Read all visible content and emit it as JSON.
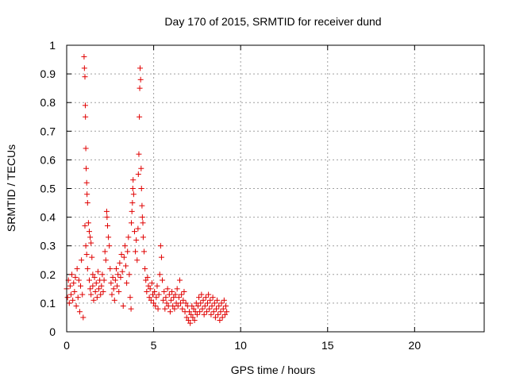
{
  "chart_data": {
    "type": "scatter",
    "title": "Day 170 of 2015, SRMTID for receiver dund",
    "xlabel": "GPS time / hours",
    "ylabel": "SRMTID / TECUs",
    "xlim": [
      0,
      24
    ],
    "ylim": [
      0,
      1
    ],
    "xticks": [
      0,
      5,
      10,
      15,
      20
    ],
    "yticks": [
      0,
      0.1,
      0.2,
      0.3,
      0.4,
      0.5,
      0.6,
      0.7,
      0.8,
      0.9,
      1
    ],
    "ytick_labels": [
      "0",
      "0.1",
      "0.2",
      "0.3",
      "0.4",
      "0.5",
      "0.6",
      "0.7",
      "0.8",
      "0.9",
      "1"
    ],
    "grid": true,
    "marker": "+",
    "color": "#e00000",
    "series": [
      {
        "name": "SRMTID",
        "points": [
          [
            0.0,
            0.15
          ],
          [
            0.05,
            0.12
          ],
          [
            0.1,
            0.18
          ],
          [
            0.15,
            0.1
          ],
          [
            0.2,
            0.16
          ],
          [
            0.25,
            0.13
          ],
          [
            0.3,
            0.2
          ],
          [
            0.35,
            0.11
          ],
          [
            0.4,
            0.17
          ],
          [
            0.45,
            0.14
          ],
          [
            0.5,
            0.19
          ],
          [
            0.55,
            0.09
          ],
          [
            0.6,
            0.22
          ],
          [
            0.65,
            0.12
          ],
          [
            0.7,
            0.18
          ],
          [
            0.75,
            0.07
          ],
          [
            0.8,
            0.16
          ],
          [
            0.85,
            0.25
          ],
          [
            0.9,
            0.13
          ],
          [
            0.95,
            0.05
          ],
          [
            1.0,
            0.96
          ],
          [
            1.02,
            0.92
          ],
          [
            1.05,
            0.89
          ],
          [
            1.07,
            0.79
          ],
          [
            1.08,
            0.75
          ],
          [
            1.1,
            0.64
          ],
          [
            1.12,
            0.57
          ],
          [
            1.15,
            0.52
          ],
          [
            1.17,
            0.48
          ],
          [
            1.2,
            0.45
          ],
          [
            1.05,
            0.37
          ],
          [
            1.1,
            0.3
          ],
          [
            1.15,
            0.27
          ],
          [
            1.2,
            0.22
          ],
          [
            1.25,
            0.38
          ],
          [
            1.3,
            0.35
          ],
          [
            1.35,
            0.33
          ],
          [
            1.4,
            0.31
          ],
          [
            1.45,
            0.26
          ],
          [
            1.5,
            0.2
          ],
          [
            1.3,
            0.18
          ],
          [
            1.35,
            0.15
          ],
          [
            1.4,
            0.13
          ],
          [
            1.5,
            0.16
          ],
          [
            1.55,
            0.11
          ],
          [
            1.6,
            0.19
          ],
          [
            1.65,
            0.14
          ],
          [
            1.7,
            0.17
          ],
          [
            1.75,
            0.12
          ],
          [
            1.8,
            0.21
          ],
          [
            1.85,
            0.15
          ],
          [
            1.9,
            0.18
          ],
          [
            1.95,
            0.13
          ],
          [
            2.0,
            0.16
          ],
          [
            2.05,
            0.2
          ],
          [
            2.1,
            0.14
          ],
          [
            2.15,
            0.18
          ],
          [
            2.2,
            0.28
          ],
          [
            2.25,
            0.25
          ],
          [
            2.3,
            0.42
          ],
          [
            2.32,
            0.4
          ],
          [
            2.35,
            0.37
          ],
          [
            2.4,
            0.33
          ],
          [
            2.45,
            0.3
          ],
          [
            2.5,
            0.22
          ],
          [
            2.55,
            0.17
          ],
          [
            2.6,
            0.13
          ],
          [
            2.65,
            0.19
          ],
          [
            2.7,
            0.15
          ],
          [
            2.75,
            0.11
          ],
          [
            2.8,
            0.18
          ],
          [
            2.85,
            0.22
          ],
          [
            2.9,
            0.16
          ],
          [
            2.95,
            0.2
          ],
          [
            3.0,
            0.14
          ],
          [
            3.05,
            0.24
          ],
          [
            3.1,
            0.19
          ],
          [
            3.15,
            0.27
          ],
          [
            3.2,
            0.21
          ],
          [
            3.25,
            0.09
          ],
          [
            3.3,
            0.26
          ],
          [
            3.35,
            0.3
          ],
          [
            3.4,
            0.23
          ],
          [
            3.45,
            0.17
          ],
          [
            3.5,
            0.28
          ],
          [
            3.55,
            0.33
          ],
          [
            3.6,
            0.2
          ],
          [
            3.65,
            0.12
          ],
          [
            3.7,
            0.08
          ],
          [
            3.72,
            0.38
          ],
          [
            3.75,
            0.42
          ],
          [
            3.78,
            0.45
          ],
          [
            3.8,
            0.5
          ],
          [
            3.82,
            0.53
          ],
          [
            3.85,
            0.48
          ],
          [
            3.9,
            0.35
          ],
          [
            3.95,
            0.28
          ],
          [
            4.0,
            0.32
          ],
          [
            4.05,
            0.25
          ],
          [
            4.1,
            0.36
          ],
          [
            4.12,
            0.55
          ],
          [
            4.15,
            0.62
          ],
          [
            4.18,
            0.75
          ],
          [
            4.2,
            0.85
          ],
          [
            4.22,
            0.92
          ],
          [
            4.25,
            0.88
          ],
          [
            4.28,
            0.57
          ],
          [
            4.3,
            0.5
          ],
          [
            4.33,
            0.44
          ],
          [
            4.35,
            0.4
          ],
          [
            4.38,
            0.38
          ],
          [
            4.4,
            0.33
          ],
          [
            4.45,
            0.28
          ],
          [
            4.5,
            0.22
          ],
          [
            4.55,
            0.18
          ],
          [
            4.6,
            0.14
          ],
          [
            4.65,
            0.19
          ],
          [
            4.7,
            0.16
          ],
          [
            4.75,
            0.12
          ],
          [
            4.8,
            0.15
          ],
          [
            4.85,
            0.11
          ],
          [
            4.9,
            0.17
          ],
          [
            4.95,
            0.13
          ],
          [
            5.0,
            0.1
          ],
          [
            5.05,
            0.14
          ],
          [
            5.1,
            0.09
          ],
          [
            5.15,
            0.12
          ],
          [
            5.2,
            0.16
          ],
          [
            5.25,
            0.08
          ],
          [
            5.3,
            0.13
          ],
          [
            5.35,
            0.2
          ],
          [
            5.4,
            0.3
          ],
          [
            5.45,
            0.26
          ],
          [
            5.5,
            0.18
          ],
          [
            5.55,
            0.11
          ],
          [
            5.6,
            0.14
          ],
          [
            5.65,
            0.08
          ],
          [
            5.7,
            0.12
          ],
          [
            5.75,
            0.1
          ],
          [
            5.8,
            0.15
          ],
          [
            5.85,
            0.09
          ],
          [
            5.9,
            0.13
          ],
          [
            5.95,
            0.07
          ],
          [
            6.0,
            0.11
          ],
          [
            6.05,
            0.14
          ],
          [
            6.1,
            0.09
          ],
          [
            6.15,
            0.12
          ],
          [
            6.2,
            0.08
          ],
          [
            6.25,
            0.13
          ],
          [
            6.3,
            0.1
          ],
          [
            6.35,
            0.15
          ],
          [
            6.4,
            0.09
          ],
          [
            6.45,
            0.12
          ],
          [
            6.5,
            0.18
          ],
          [
            6.55,
            0.1
          ],
          [
            6.6,
            0.13
          ],
          [
            6.65,
            0.08
          ],
          [
            6.7,
            0.11
          ],
          [
            6.75,
            0.14
          ],
          [
            6.8,
            0.07
          ],
          [
            6.85,
            0.1
          ],
          [
            6.9,
            0.05
          ],
          [
            6.95,
            0.09
          ],
          [
            7.0,
            0.04
          ],
          [
            7.05,
            0.07
          ],
          [
            7.1,
            0.03
          ],
          [
            7.15,
            0.06
          ],
          [
            7.2,
            0.09
          ],
          [
            7.25,
            0.05
          ],
          [
            7.3,
            0.08
          ],
          [
            7.35,
            0.04
          ],
          [
            7.4,
            0.07
          ],
          [
            7.45,
            0.1
          ],
          [
            7.5,
            0.06
          ],
          [
            7.55,
            0.09
          ],
          [
            7.6,
            0.12
          ],
          [
            7.65,
            0.07
          ],
          [
            7.7,
            0.1
          ],
          [
            7.75,
            0.13
          ],
          [
            7.8,
            0.08
          ],
          [
            7.85,
            0.11
          ],
          [
            7.9,
            0.06
          ],
          [
            7.95,
            0.09
          ],
          [
            8.0,
            0.12
          ],
          [
            8.05,
            0.07
          ],
          [
            8.1,
            0.1
          ],
          [
            8.15,
            0.13
          ],
          [
            8.2,
            0.08
          ],
          [
            8.25,
            0.11
          ],
          [
            8.3,
            0.06
          ],
          [
            8.35,
            0.09
          ],
          [
            8.4,
            0.12
          ],
          [
            8.45,
            0.07
          ],
          [
            8.5,
            0.1
          ],
          [
            8.55,
            0.05
          ],
          [
            8.6,
            0.08
          ],
          [
            8.65,
            0.11
          ],
          [
            8.7,
            0.06
          ],
          [
            8.75,
            0.09
          ],
          [
            8.8,
            0.04
          ],
          [
            8.85,
            0.07
          ],
          [
            8.9,
            0.1
          ],
          [
            8.95,
            0.05
          ],
          [
            9.0,
            0.08
          ],
          [
            9.05,
            0.11
          ],
          [
            9.1,
            0.06
          ],
          [
            9.15,
            0.09
          ],
          [
            9.2,
            0.07
          ]
        ]
      }
    ]
  }
}
